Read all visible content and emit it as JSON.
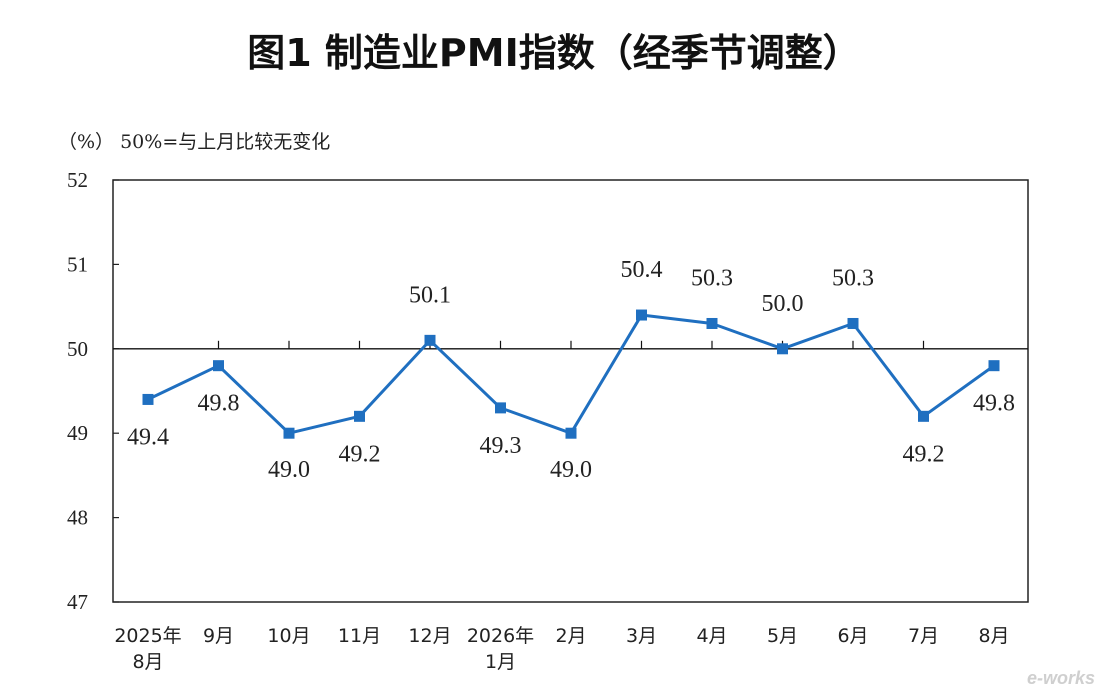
{
  "title": "图1 制造业PMI指数（经季节调整）",
  "unit_note": "（%）  50%=与上月比较无变化",
  "watermark": "e-works",
  "chart_data": {
    "type": "line",
    "title": "图1 制造业PMI指数（经季节调整）",
    "ylabel": "（%）",
    "xlabel": "",
    "reference_line": 50,
    "reference_note": "50%=与上月比较无变化",
    "ylim": [
      47,
      52
    ],
    "yticks": [
      "47",
      "48",
      "49",
      "50",
      "51",
      "52"
    ],
    "categories": [
      [
        "2025年",
        "8月"
      ],
      [
        "9月"
      ],
      [
        "10月"
      ],
      [
        "11月"
      ],
      [
        "12月"
      ],
      [
        "2026年",
        "1月"
      ],
      [
        "2月"
      ],
      [
        "3月"
      ],
      [
        "4月"
      ],
      [
        "5月"
      ],
      [
        "6月"
      ],
      [
        "7月"
      ],
      [
        "8月"
      ]
    ],
    "series": [
      {
        "values": [
          49.4,
          49.8,
          49.0,
          49.2,
          50.1,
          49.3,
          49.0,
          50.4,
          50.3,
          50.0,
          50.3,
          49.2,
          49.8
        ],
        "labels": [
          "49.4",
          "49.8",
          "49.0",
          "49.2",
          "50.1",
          "49.3",
          "49.0",
          "50.4",
          "50.3",
          "50.0",
          "50.3",
          "49.2",
          "49.8"
        ],
        "color": "#1f6fc0"
      }
    ],
    "grid": false,
    "legend": "none"
  }
}
